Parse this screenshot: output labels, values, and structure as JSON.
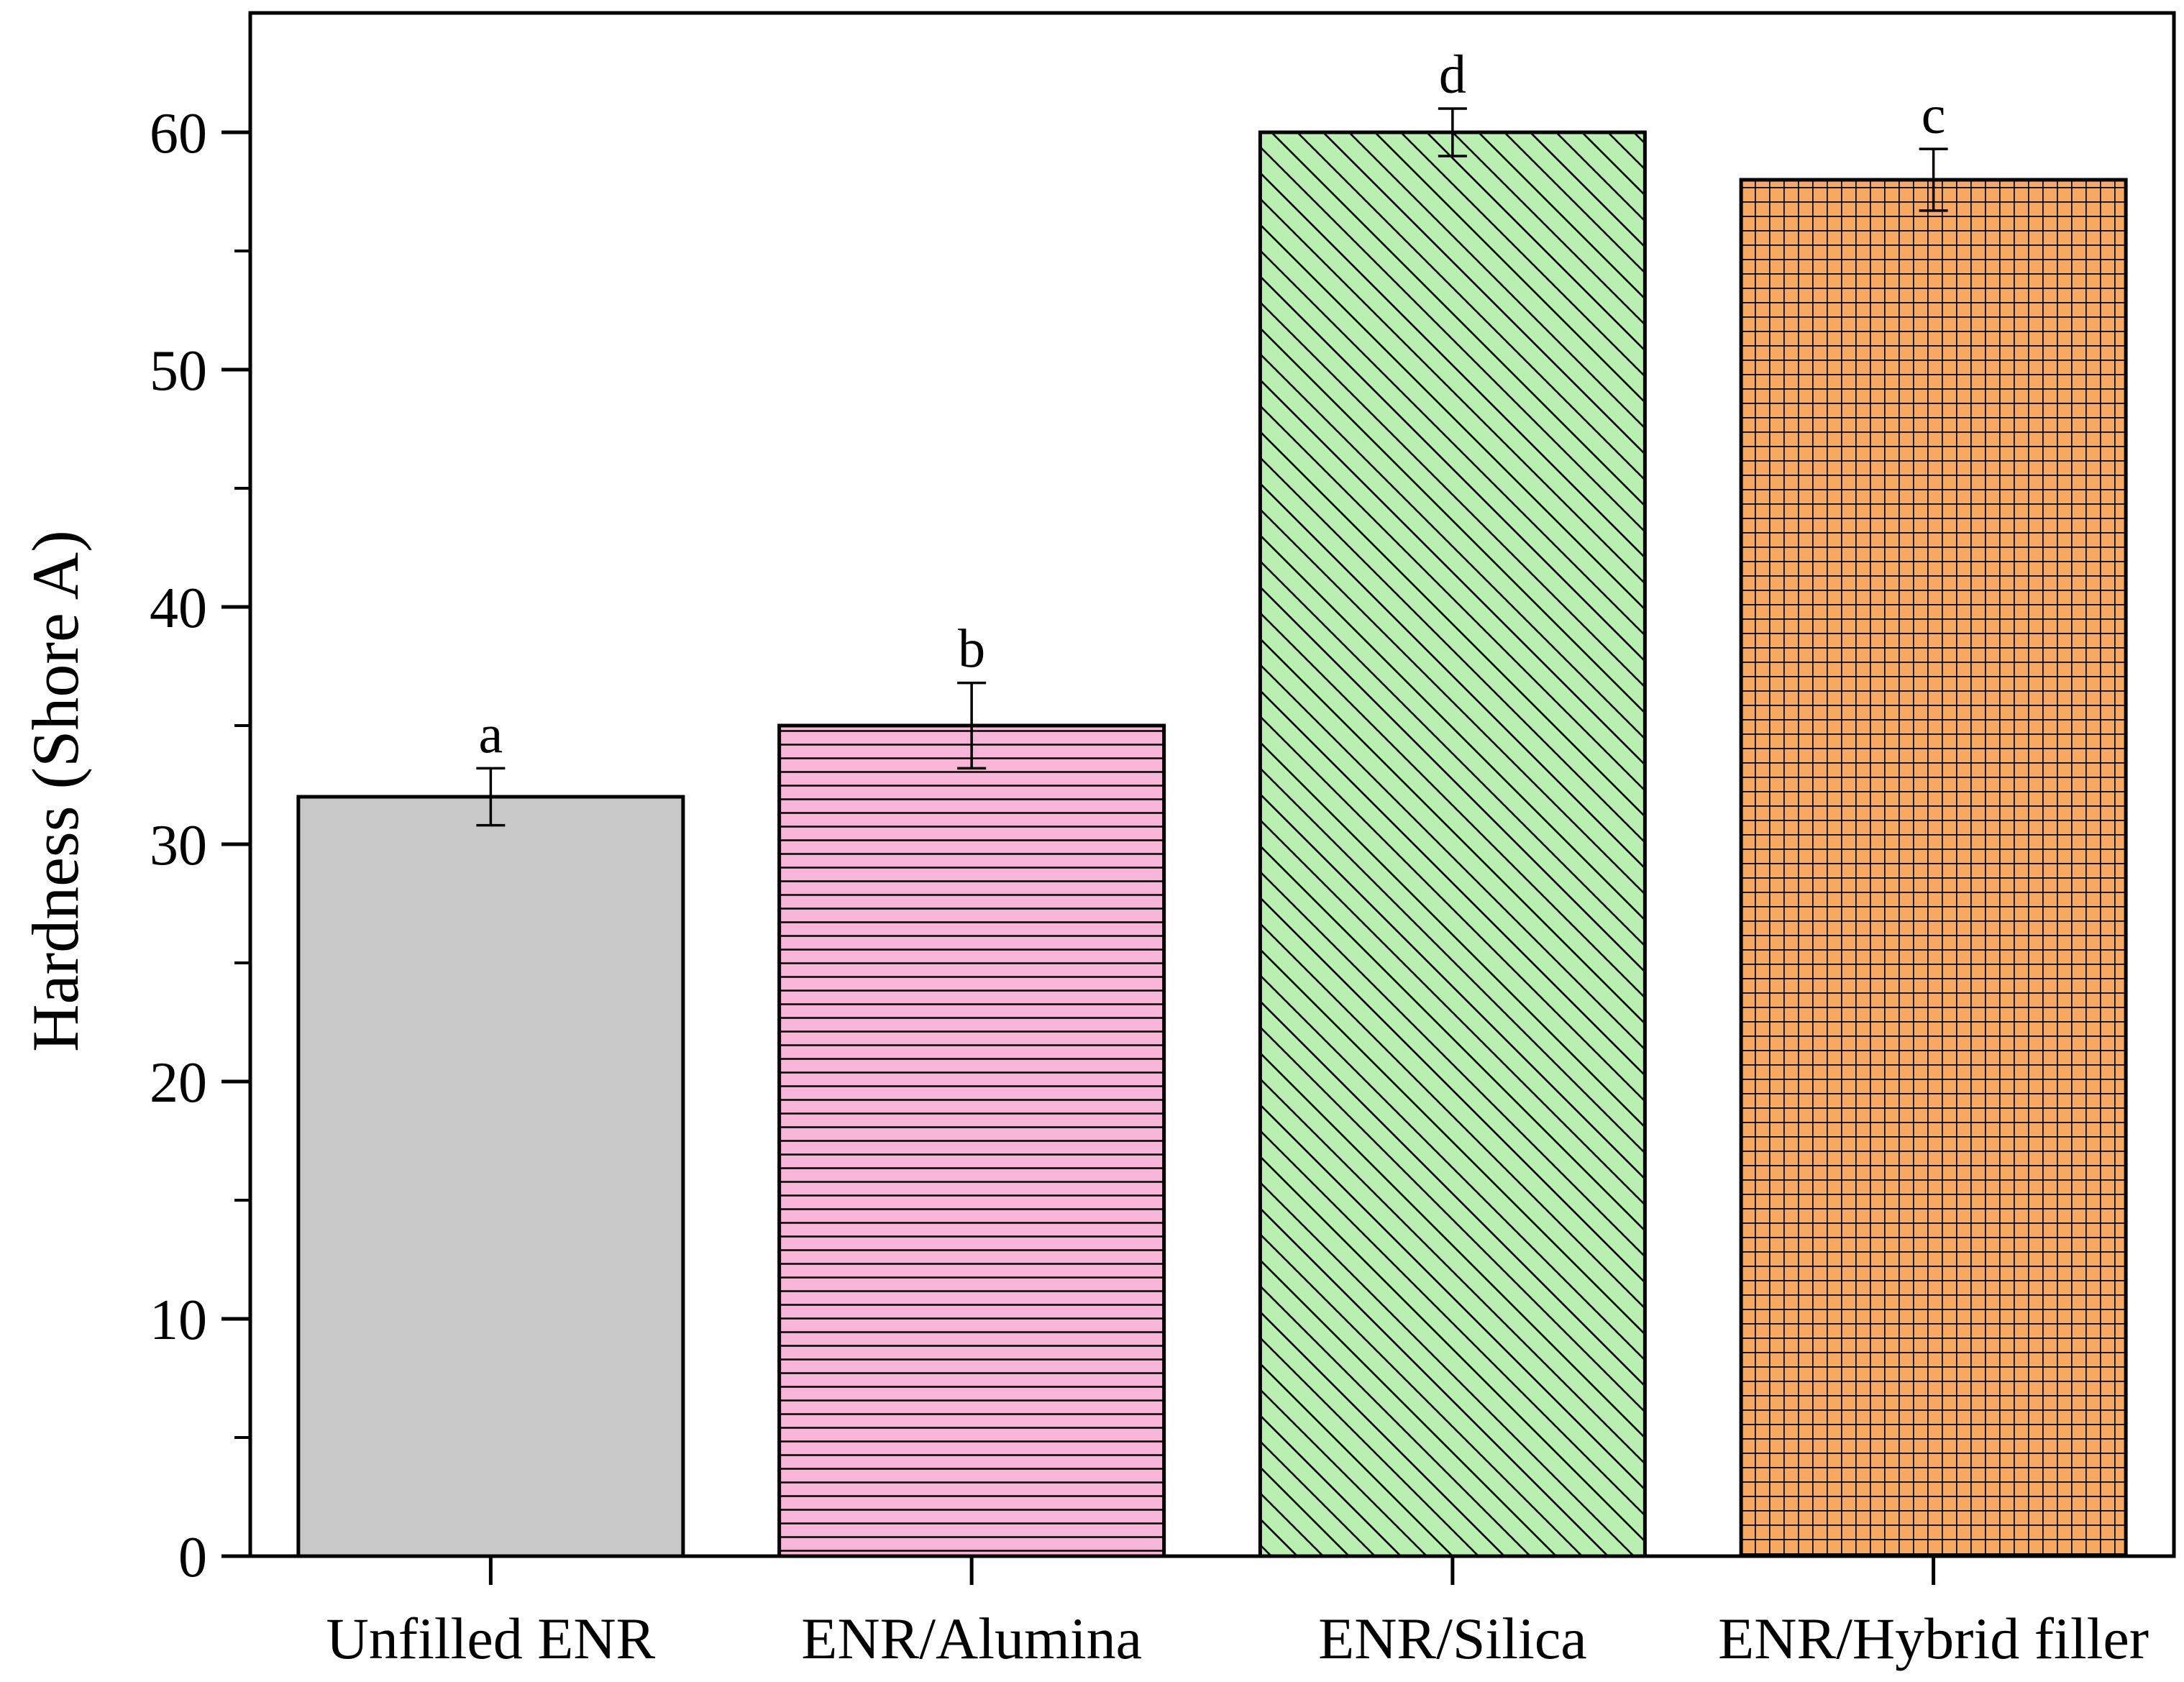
{
  "chart_data": {
    "type": "bar",
    "title": "",
    "xlabel": "",
    "ylabel": "Hardness (Shore A)",
    "ylim": [
      0,
      65
    ],
    "yticks": [
      0,
      10,
      20,
      30,
      40,
      50,
      60
    ],
    "grid": false,
    "categories": [
      "Unfilled ENR",
      "ENR/Alumina",
      "ENR/Silica",
      "ENR/Hybrid filler"
    ],
    "values": [
      32,
      35,
      60,
      58
    ],
    "errors": [
      1.2,
      1.8,
      1.0,
      1.3
    ],
    "significance_letters": [
      "a",
      "b",
      "d",
      "c"
    ],
    "colors": [
      "#c8c8c8",
      "#f9b5d8",
      "#b9f0b1",
      "#f9a860"
    ],
    "patterns": [
      "solid",
      "horizontal",
      "diagonal",
      "grid"
    ]
  }
}
